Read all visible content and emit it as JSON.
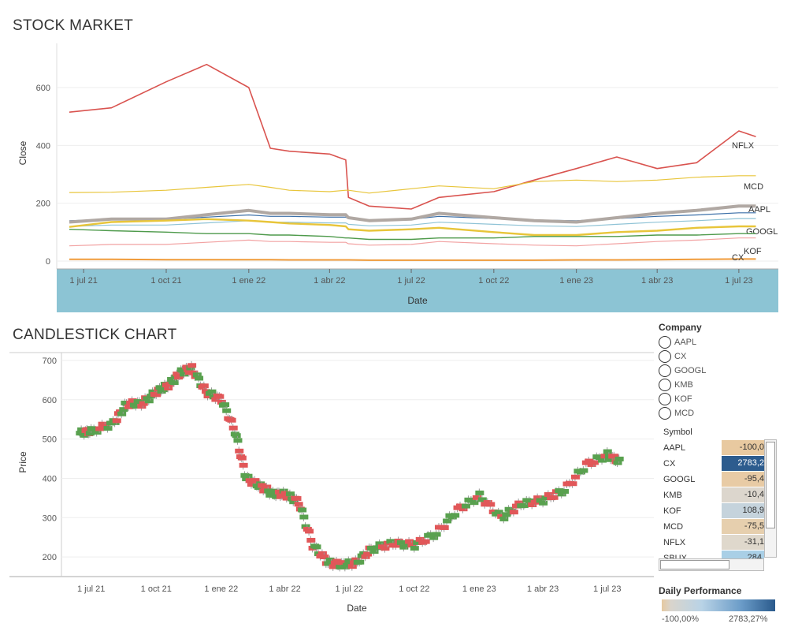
{
  "top": {
    "title": "STOCK MARKET",
    "ylabel": "Close",
    "xlabel": "Date",
    "yticks": [
      "600",
      "400",
      "200",
      "0"
    ],
    "xticks": [
      "1 jul 21",
      "1 oct 21",
      "1 ene 22",
      "1 abr 22",
      "1 jul 22",
      "1 oct 22",
      "1 ene 23",
      "1 abr 23",
      "1 jul 23"
    ]
  },
  "candle": {
    "title": "CANDLESTICK CHART",
    "ylabel": "Price",
    "xlabel": "Date",
    "yticks": [
      "700",
      "600",
      "500",
      "400",
      "300",
      "200"
    ],
    "xticks": [
      "1 jul 21",
      "1 oct 21",
      "1 ene 22",
      "1 abr 22",
      "1 jul 22",
      "1 oct 22",
      "1 ene 23",
      "1 abr 23",
      "1 jul 23"
    ]
  },
  "filter": {
    "title": "Company",
    "options": [
      "AAPL",
      "CX",
      "GOOGL",
      "KMB",
      "KOF",
      "MCD"
    ]
  },
  "table": {
    "header": "Symbol",
    "rows": [
      {
        "symbol": "AAPL",
        "value": "-100,0",
        "color": "#e8c9a0"
      },
      {
        "symbol": "CX",
        "value": "2783,2",
        "color": "#2d5c8e"
      },
      {
        "symbol": "GOOGL",
        "value": "-95,4",
        "color": "#e8cba5"
      },
      {
        "symbol": "KMB",
        "value": "-10,4",
        "color": "#dcd6cd"
      },
      {
        "symbol": "KOF",
        "value": "108,9",
        "color": "#c5d3dc"
      },
      {
        "symbol": "MCD",
        "value": "-75,5",
        "color": "#e6cfae"
      },
      {
        "symbol": "NFLX",
        "value": "-31,1",
        "color": "#dfd8cc"
      },
      {
        "symbol": "SBUX",
        "value": "284,",
        "color": "#a9cfe6"
      }
    ]
  },
  "legend": {
    "title": "Daily Performance",
    "min": "-100,00%",
    "max": "2783,27%"
  },
  "colors": {
    "NFLX": "#d9534f",
    "MCD": "#e8c53a",
    "AAPL": "#b0a8a3",
    "GOOGL": "#e8c53a",
    "KOF": "#4e9a4b",
    "CX": "#f09b3a",
    "blue": "#3b6fa8",
    "pink": "#f2a2a2",
    "teal": "#8fc3d6",
    "axisband": "#8cc4d4",
    "up": "#59a14f",
    "down": "#e15759"
  },
  "chart_data": [
    {
      "type": "line",
      "title": "STOCK MARKET",
      "xlabel": "Date",
      "ylabel": "Close",
      "ylim": [
        0,
        700
      ],
      "x": [
        "2021-06-15",
        "2021-08-01",
        "2021-10-01",
        "2021-11-15",
        "2022-01-01",
        "2022-01-25",
        "2022-02-15",
        "2022-04-01",
        "2022-04-19",
        "2022-04-22",
        "2022-05-15",
        "2022-07-01",
        "2022-08-01",
        "2022-10-01",
        "2022-11-15",
        "2023-01-01",
        "2023-02-15",
        "2023-04-01",
        "2023-05-15",
        "2023-07-01",
        "2023-07-20"
      ],
      "series": [
        {
          "name": "NFLX",
          "values": [
            515,
            530,
            620,
            680,
            600,
            390,
            380,
            370,
            350,
            220,
            190,
            180,
            220,
            240,
            280,
            320,
            360,
            320,
            340,
            450,
            430
          ]
        },
        {
          "name": "MCD",
          "values": [
            237,
            238,
            245,
            255,
            265,
            255,
            245,
            240,
            245,
            245,
            235,
            250,
            260,
            250,
            275,
            280,
            275,
            280,
            290,
            295,
            295
          ]
        },
        {
          "name": "AAPL",
          "values": [
            135,
            145,
            145,
            160,
            175,
            165,
            165,
            160,
            160,
            150,
            140,
            145,
            165,
            150,
            140,
            135,
            150,
            165,
            175,
            190,
            190
          ]
        },
        {
          "name": "GOOGL",
          "values": [
            118,
            135,
            140,
            145,
            140,
            135,
            130,
            125,
            120,
            110,
            105,
            110,
            115,
            100,
            90,
            90,
            100,
            105,
            115,
            120,
            120
          ]
        },
        {
          "name": "KOF",
          "values": [
            110,
            105,
            100,
            95,
            95,
            90,
            90,
            85,
            80,
            80,
            75,
            75,
            80,
            80,
            85,
            85,
            85,
            90,
            90,
            95,
            95
          ]
        },
        {
          "name": "CX",
          "values": [
            6,
            6,
            5,
            5,
            5,
            5,
            4,
            4,
            4,
            4,
            3,
            3,
            3,
            3,
            3,
            4,
            4,
            5,
            6,
            7,
            7
          ]
        }
      ]
    },
    {
      "type": "candlestick",
      "title": "CANDLESTICK CHART",
      "xlabel": "Date",
      "ylabel": "Price",
      "ylim": [
        150,
        720
      ],
      "x": [
        "2021-06-15",
        "2021-07-01",
        "2021-08-01",
        "2021-08-20",
        "2021-09-10",
        "2021-10-01",
        "2021-10-20",
        "2021-11-05",
        "2021-11-20",
        "2021-12-10",
        "2022-01-01",
        "2022-01-20",
        "2022-02-05",
        "2022-02-25",
        "2022-03-15",
        "2022-04-01",
        "2022-04-20",
        "2022-05-10",
        "2022-06-01",
        "2022-06-20",
        "2022-07-10",
        "2022-08-01",
        "2022-09-01",
        "2022-10-01",
        "2022-11-01",
        "2022-12-01",
        "2023-01-01",
        "2023-02-01",
        "2023-03-01",
        "2023-04-01",
        "2023-05-01",
        "2023-06-01",
        "2023-07-01",
        "2023-07-20"
      ],
      "values": [
        515,
        520,
        540,
        590,
        590,
        620,
        640,
        670,
        680,
        620,
        600,
        520,
        400,
        380,
        360,
        360,
        340,
        230,
        185,
        180,
        185,
        220,
        235,
        230,
        260,
        320,
        355,
        300,
        335,
        345,
        370,
        435,
        460,
        440
      ]
    }
  ]
}
